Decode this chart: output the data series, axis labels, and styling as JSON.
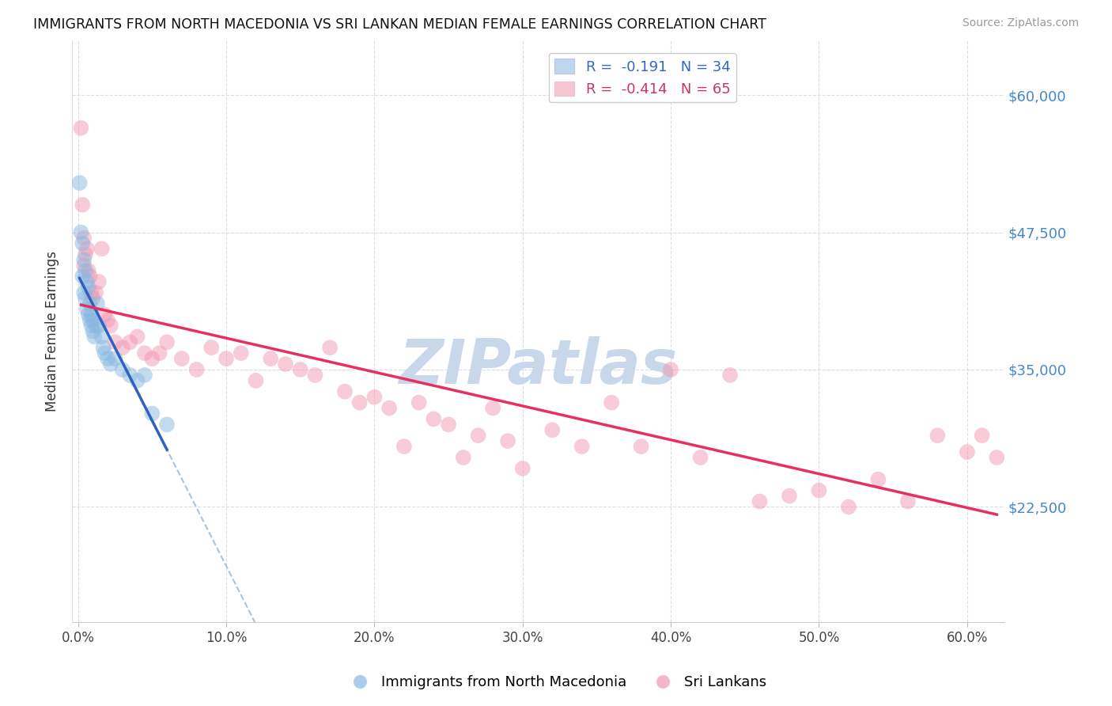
{
  "title": "IMMIGRANTS FROM NORTH MACEDONIA VS SRI LANKAN MEDIAN FEMALE EARNINGS CORRELATION CHART",
  "source": "Source: ZipAtlas.com",
  "ylabel": "Median Female Earnings",
  "xlabel_ticks": [
    "0.0%",
    "10.0%",
    "20.0%",
    "30.0%",
    "40.0%",
    "50.0%",
    "60.0%"
  ],
  "xlabel_vals": [
    0.0,
    0.1,
    0.2,
    0.3,
    0.4,
    0.5,
    0.6
  ],
  "ytick_labels": [
    "$22,500",
    "$35,000",
    "$47,500",
    "$60,000"
  ],
  "ytick_vals": [
    22500,
    35000,
    47500,
    60000
  ],
  "ylim": [
    12000,
    65000
  ],
  "xlim": [
    -0.004,
    0.625
  ],
  "legend_entries": [
    {
      "label": "R =  -0.191   N = 34",
      "color": "#a8c8e8"
    },
    {
      "label": "R =  -0.414   N = 65",
      "color": "#f4a0b8"
    }
  ],
  "watermark": "ZIPatlas",
  "watermark_color": "#c8d8ea",
  "bg_color": "#ffffff",
  "grid_color": "#dcdce8",
  "blue_color": "#88b8e0",
  "pink_color": "#f098b0",
  "blue_line_color": "#3060c0",
  "pink_line_color": "#e83060",
  "dashed_line_color": "#a8c4e0",
  "north_macedonia_x": [
    0.001,
    0.002,
    0.003,
    0.003,
    0.004,
    0.004,
    0.005,
    0.005,
    0.006,
    0.006,
    0.007,
    0.007,
    0.008,
    0.008,
    0.009,
    0.009,
    0.01,
    0.01,
    0.011,
    0.012,
    0.013,
    0.014,
    0.016,
    0.017,
    0.018,
    0.02,
    0.022,
    0.025,
    0.03,
    0.035,
    0.04,
    0.045,
    0.05,
    0.06
  ],
  "north_macedonia_y": [
    52000,
    47500,
    46500,
    43500,
    45000,
    42000,
    44000,
    41500,
    43000,
    40500,
    42500,
    40000,
    41000,
    39500,
    40000,
    39000,
    39500,
    38500,
    38000,
    39000,
    41000,
    39000,
    38000,
    37000,
    36500,
    36000,
    35500,
    36000,
    35000,
    34500,
    34000,
    34500,
    31000,
    30000
  ],
  "sri_lanka_x": [
    0.002,
    0.003,
    0.004,
    0.004,
    0.005,
    0.006,
    0.007,
    0.008,
    0.009,
    0.01,
    0.012,
    0.014,
    0.016,
    0.018,
    0.02,
    0.022,
    0.025,
    0.03,
    0.035,
    0.04,
    0.045,
    0.05,
    0.055,
    0.06,
    0.07,
    0.08,
    0.09,
    0.1,
    0.11,
    0.12,
    0.13,
    0.14,
    0.15,
    0.16,
    0.17,
    0.18,
    0.19,
    0.2,
    0.21,
    0.22,
    0.23,
    0.24,
    0.25,
    0.26,
    0.27,
    0.28,
    0.29,
    0.3,
    0.32,
    0.34,
    0.36,
    0.38,
    0.4,
    0.42,
    0.44,
    0.46,
    0.48,
    0.5,
    0.52,
    0.54,
    0.56,
    0.58,
    0.6,
    0.61,
    0.62
  ],
  "sri_lanka_y": [
    57000,
    50000,
    47000,
    44500,
    45500,
    46000,
    44000,
    43500,
    42000,
    41500,
    42000,
    43000,
    46000,
    40000,
    39500,
    39000,
    37500,
    37000,
    37500,
    38000,
    36500,
    36000,
    36500,
    37500,
    36000,
    35000,
    37000,
    36000,
    36500,
    34000,
    36000,
    35500,
    35000,
    34500,
    37000,
    33000,
    32000,
    32500,
    31500,
    28000,
    32000,
    30500,
    30000,
    27000,
    29000,
    31500,
    28500,
    26000,
    29500,
    28000,
    32000,
    28000,
    35000,
    27000,
    34500,
    23000,
    23500,
    24000,
    22500,
    25000,
    23000,
    29000,
    27500,
    29000,
    27000
  ]
}
